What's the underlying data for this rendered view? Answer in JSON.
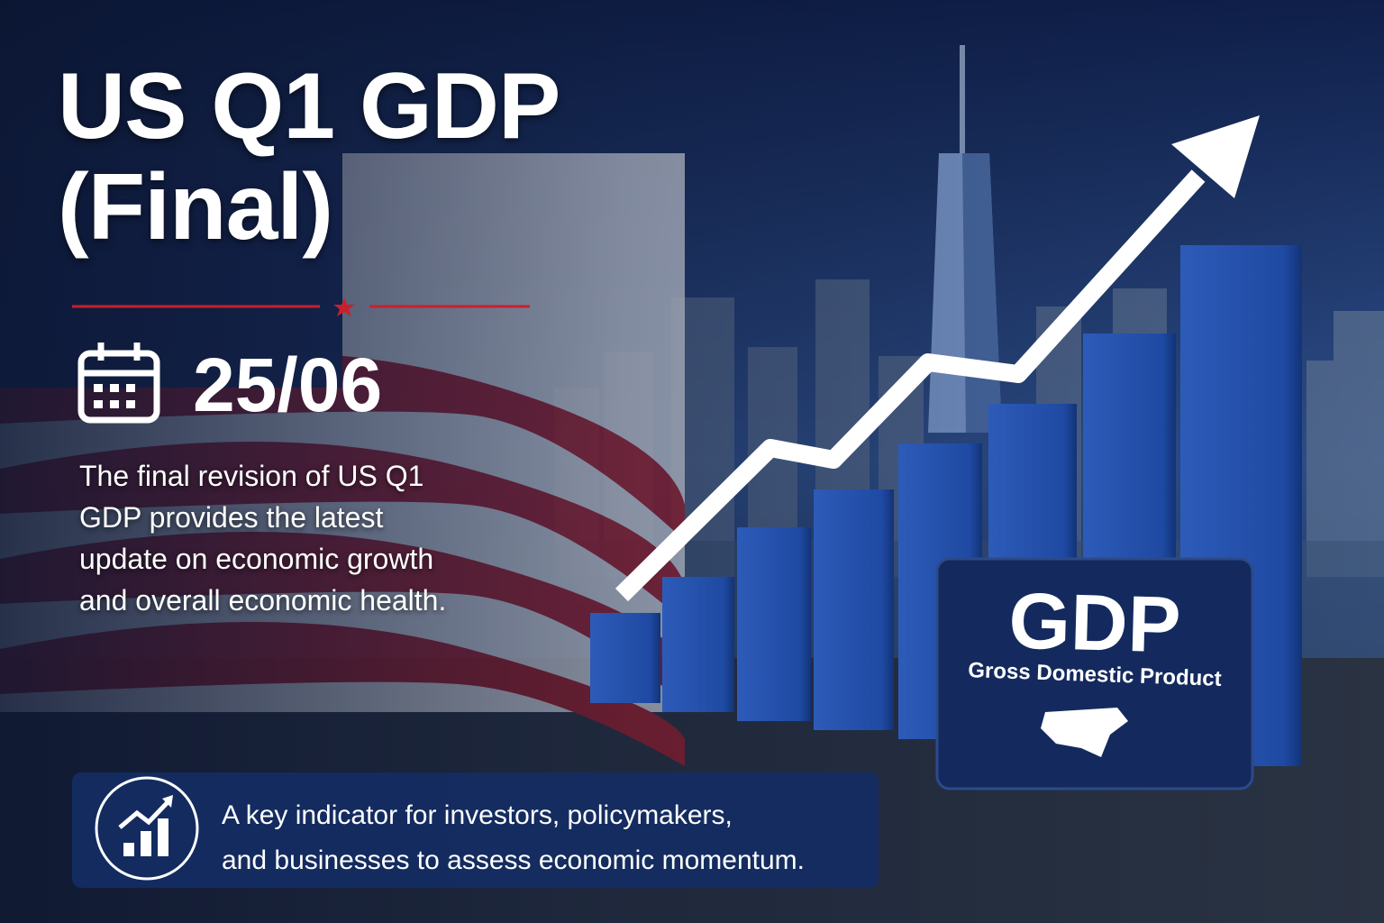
{
  "title": {
    "line1": "US Q1 GDP",
    "line2": "(Final)"
  },
  "date": "25/06",
  "description": "The final revision of US Q1 GDP provides the latest update on economic growth and overall economic health.",
  "sign": {
    "heading": "GDP",
    "subheading": "Gross Domestic Product"
  },
  "banner": {
    "line1": "A key indicator for investors, policymakers,",
    "line2": "and businesses to assess economic momentum."
  }
}
